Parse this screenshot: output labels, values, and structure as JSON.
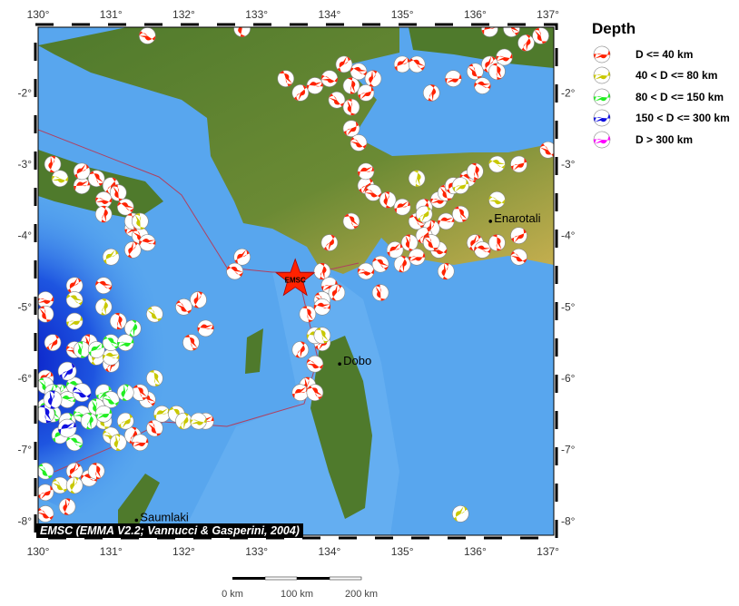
{
  "map": {
    "lon_range": [
      130,
      137.08
    ],
    "lat_range": [
      -8.2,
      -1.08
    ],
    "lon_ticks": [
      "130°",
      "131°",
      "132°",
      "133°",
      "134°",
      "135°",
      "136°",
      "137°"
    ],
    "lat_ticks": [
      "-2°",
      "-3°",
      "-4°",
      "-5°",
      "-6°",
      "-7°",
      "-8°"
    ],
    "credit": "EMSC (EMMA V2.2; Vannucci & Gasperini, 2004)",
    "epicenter": {
      "label": "EMSC",
      "lon": 133.53,
      "lat": -4.61,
      "color": "#ff2200"
    },
    "cities": [
      {
        "name": "Enarotali",
        "lon": 136.21,
        "lat": -3.8
      },
      {
        "name": "Dobo",
        "lon": 134.14,
        "lat": -5.8
      },
      {
        "name": "Saumlaki",
        "lon": 131.35,
        "lat": -7.99
      }
    ],
    "scale_bar": {
      "labels": [
        "0 km",
        "100 km",
        "200 km"
      ]
    }
  },
  "legend": {
    "title": "Depth",
    "items": [
      {
        "label": "D <= 40 km",
        "color": "#ff2200"
      },
      {
        "label": "40 < D <= 80 km",
        "color": "#c8c800"
      },
      {
        "label": "80 < D <= 150 km",
        "color": "#22ee22"
      },
      {
        "label": "150 < D <= 300 km",
        "color": "#1010e0"
      },
      {
        "label": "D > 300 km",
        "color": "#ff00ff"
      }
    ]
  },
  "events": {
    "d40": [
      [
        131.5,
        -1.2
      ],
      [
        132.8,
        -1.1
      ],
      [
        136.2,
        -1.1
      ],
      [
        136.5,
        -1.1
      ],
      [
        136.7,
        -1.3
      ],
      [
        136.4,
        -1.5
      ],
      [
        136.9,
        -1.2
      ],
      [
        134.2,
        -1.6
      ],
      [
        134.4,
        -1.7
      ],
      [
        134.3,
        -1.9
      ],
      [
        134.5,
        -2.0
      ],
      [
        134.1,
        -2.1
      ],
      [
        134.6,
        -1.8
      ],
      [
        133.8,
        -1.9
      ],
      [
        133.4,
        -1.8
      ],
      [
        133.6,
        -2.0
      ],
      [
        134.0,
        -1.8
      ],
      [
        134.3,
        -2.2
      ],
      [
        135.0,
        -1.6
      ],
      [
        135.2,
        -1.6
      ],
      [
        135.4,
        -2.0
      ],
      [
        135.7,
        -1.8
      ],
      [
        136.0,
        -1.7
      ],
      [
        136.2,
        -1.6
      ],
      [
        136.1,
        -1.9
      ],
      [
        136.3,
        -1.7
      ],
      [
        134.3,
        -2.5
      ],
      [
        134.4,
        -2.7
      ],
      [
        130.2,
        -3.0
      ],
      [
        130.6,
        -3.3
      ],
      [
        130.8,
        -3.2
      ],
      [
        131.0,
        -3.3
      ],
      [
        130.9,
        -3.5
      ],
      [
        131.1,
        -3.4
      ],
      [
        130.6,
        -3.1
      ],
      [
        131.2,
        -3.6
      ],
      [
        130.9,
        -3.7
      ],
      [
        131.3,
        -3.9
      ],
      [
        131.4,
        -4.0
      ],
      [
        131.3,
        -4.2
      ],
      [
        131.5,
        -4.1
      ],
      [
        131.3,
        -3.8
      ],
      [
        134.5,
        -3.3
      ],
      [
        134.6,
        -3.4
      ],
      [
        134.8,
        -3.5
      ],
      [
        135.0,
        -3.6
      ],
      [
        135.2,
        -3.8
      ],
      [
        135.3,
        -3.6
      ],
      [
        135.5,
        -3.5
      ],
      [
        135.6,
        -3.4
      ],
      [
        135.7,
        -3.3
      ],
      [
        135.9,
        -3.2
      ],
      [
        136.0,
        -3.1
      ],
      [
        136.6,
        -3.0
      ],
      [
        137.0,
        -2.8
      ],
      [
        135.4,
        -3.9
      ],
      [
        135.6,
        -3.8
      ],
      [
        135.8,
        -3.7
      ],
      [
        135.3,
        -4.0
      ],
      [
        135.5,
        -4.2
      ],
      [
        135.1,
        -4.1
      ],
      [
        134.9,
        -4.2
      ],
      [
        134.7,
        -4.4
      ],
      [
        135.0,
        -4.4
      ],
      [
        135.2,
        -4.3
      ],
      [
        135.4,
        -4.1
      ],
      [
        136.0,
        -4.1
      ],
      [
        136.1,
        -4.2
      ],
      [
        136.3,
        -4.1
      ],
      [
        136.6,
        -4.0
      ],
      [
        136.6,
        -4.3
      ],
      [
        135.6,
        -4.5
      ],
      [
        134.5,
        -3.1
      ],
      [
        134.3,
        -3.8
      ],
      [
        134.0,
        -4.1
      ],
      [
        134.5,
        -4.5
      ],
      [
        134.7,
        -4.8
      ],
      [
        132.8,
        -4.3
      ],
      [
        132.7,
        -4.5
      ],
      [
        133.9,
        -4.5
      ],
      [
        134.0,
        -4.7
      ],
      [
        133.9,
        -4.9
      ],
      [
        134.1,
        -4.8
      ],
      [
        133.9,
        -5.0
      ],
      [
        133.7,
        -5.1
      ],
      [
        133.9,
        -5.5
      ],
      [
        133.8,
        -5.8
      ],
      [
        133.7,
        -6.1
      ],
      [
        133.6,
        -6.2
      ],
      [
        133.8,
        -6.2
      ],
      [
        133.6,
        -5.6
      ],
      [
        130.1,
        -4.9
      ],
      [
        130.1,
        -5.1
      ],
      [
        130.5,
        -4.7
      ],
      [
        130.9,
        -4.7
      ],
      [
        131.1,
        -5.2
      ],
      [
        131.3,
        -5.3
      ],
      [
        132.0,
        -5.0
      ],
      [
        132.2,
        -4.9
      ],
      [
        132.3,
        -5.3
      ],
      [
        132.1,
        -5.5
      ],
      [
        130.2,
        -5.5
      ],
      [
        130.5,
        -5.6
      ],
      [
        130.7,
        -5.5
      ],
      [
        130.1,
        -6.0
      ],
      [
        131.5,
        -6.3
      ],
      [
        131.3,
        -6.8
      ],
      [
        131.4,
        -6.9
      ],
      [
        131.6,
        -6.7
      ],
      [
        130.5,
        -7.3
      ],
      [
        130.7,
        -7.4
      ],
      [
        130.8,
        -7.3
      ],
      [
        130.1,
        -7.6
      ],
      [
        130.1,
        -7.9
      ],
      [
        130.4,
        -7.8
      ],
      [
        132.3,
        -6.6
      ],
      [
        131.4,
        -6.2
      ],
      [
        131.0,
        -5.8
      ]
    ],
    "d80": [
      [
        130.3,
        -3.2
      ],
      [
        131.4,
        -3.8
      ],
      [
        131.0,
        -4.3
      ],
      [
        130.5,
        -4.9
      ],
      [
        130.9,
        -5.0
      ],
      [
        130.5,
        -5.2
      ],
      [
        131.6,
        -5.1
      ],
      [
        130.8,
        -5.7
      ],
      [
        131.0,
        -5.7
      ],
      [
        131.6,
        -6.0
      ],
      [
        131.2,
        -6.6
      ],
      [
        131.0,
        -6.8
      ],
      [
        131.1,
        -6.9
      ],
      [
        131.7,
        -6.5
      ],
      [
        131.9,
        -6.5
      ],
      [
        132.0,
        -6.6
      ],
      [
        132.2,
        -6.6
      ],
      [
        130.9,
        -6.6
      ],
      [
        135.8,
        -7.9
      ],
      [
        136.3,
        -3.0
      ],
      [
        135.2,
        -3.2
      ],
      [
        135.8,
        -3.3
      ],
      [
        130.3,
        -7.5
      ],
      [
        130.5,
        -7.5
      ],
      [
        133.8,
        -5.4
      ],
      [
        133.9,
        -5.4
      ],
      [
        135.3,
        -3.7
      ],
      [
        136.3,
        -3.5
      ]
    ],
    "d150": [
      [
        130.6,
        -5.6
      ],
      [
        130.8,
        -5.6
      ],
      [
        131.0,
        -5.5
      ],
      [
        131.3,
        -5.3
      ],
      [
        131.2,
        -5.5
      ],
      [
        130.1,
        -6.1
      ],
      [
        130.3,
        -6.2
      ],
      [
        130.5,
        -6.1
      ],
      [
        130.6,
        -6.2
      ],
      [
        130.9,
        -6.2
      ],
      [
        131.0,
        -6.3
      ],
      [
        131.2,
        -6.2
      ],
      [
        130.1,
        -6.4
      ],
      [
        130.2,
        -6.5
      ],
      [
        130.4,
        -6.6
      ],
      [
        130.6,
        -6.5
      ],
      [
        130.8,
        -6.4
      ],
      [
        130.3,
        -6.8
      ],
      [
        130.5,
        -6.9
      ],
      [
        130.7,
        -6.6
      ],
      [
        130.9,
        -6.5
      ],
      [
        130.1,
        -7.3
      ],
      [
        130.2,
        -6.2
      ],
      [
        130.4,
        -6.3
      ]
    ],
    "d300": [
      [
        130.1,
        -6.5
      ],
      [
        130.4,
        -5.9
      ],
      [
        130.6,
        -6.2
      ],
      [
        130.2,
        -6.3
      ],
      [
        130.4,
        -6.7
      ]
    ],
    "d700": []
  }
}
